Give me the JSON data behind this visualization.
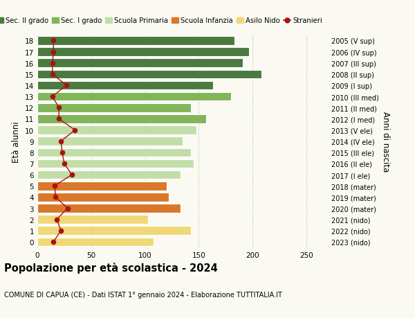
{
  "ages": [
    18,
    17,
    16,
    15,
    14,
    13,
    12,
    11,
    10,
    9,
    8,
    7,
    6,
    5,
    4,
    3,
    2,
    1,
    0
  ],
  "right_labels": [
    "2005 (V sup)",
    "2006 (IV sup)",
    "2007 (III sup)",
    "2008 (II sup)",
    "2009 (I sup)",
    "2010 (III med)",
    "2011 (II med)",
    "2012 (I med)",
    "2013 (V ele)",
    "2014 (IV ele)",
    "2015 (III ele)",
    "2016 (II ele)",
    "2017 (I ele)",
    "2018 (mater)",
    "2019 (mater)",
    "2020 (mater)",
    "2021 (nido)",
    "2022 (nido)",
    "2023 (nido)"
  ],
  "bar_values": [
    183,
    197,
    191,
    208,
    163,
    180,
    143,
    157,
    148,
    135,
    143,
    145,
    133,
    120,
    122,
    133,
    103,
    143,
    108
  ],
  "stranieri": [
    15,
    15,
    14,
    14,
    27,
    14,
    20,
    20,
    35,
    22,
    23,
    25,
    32,
    16,
    17,
    28,
    18,
    22,
    15
  ],
  "bar_colors": [
    "#4a7a40",
    "#4a7a40",
    "#4a7a40",
    "#4a7a40",
    "#4a7a40",
    "#82b55a",
    "#82b55a",
    "#82b55a",
    "#c2dea8",
    "#c2dea8",
    "#c2dea8",
    "#c2dea8",
    "#c2dea8",
    "#d9782a",
    "#d9782a",
    "#d9782a",
    "#f0d878",
    "#f0d878",
    "#f0d878"
  ],
  "stranieri_color": "#aa1111",
  "ylabel": "Età alunni",
  "right_ylabel": "Anni di nascita",
  "title": "Popolazione per età scolastica - 2024",
  "subtitle": "COMUNE DI CAPUA (CE) - Dati ISTAT 1° gennaio 2024 - Elaborazione TUTTITALIA.IT",
  "xlim": [
    0,
    270
  ],
  "xticks": [
    0,
    50,
    100,
    150,
    200,
    250
  ],
  "legend_labels": [
    "Sec. II grado",
    "Sec. I grado",
    "Scuola Primaria",
    "Scuola Infanzia",
    "Asilo Nido",
    "Stranieri"
  ],
  "legend_colors": [
    "#4a7a40",
    "#82b55a",
    "#c2dea8",
    "#d9782a",
    "#f0d878",
    "#aa1111"
  ],
  "background_color": "#fafaf2",
  "bar_height": 0.78,
  "grid_color": "#cccccc"
}
